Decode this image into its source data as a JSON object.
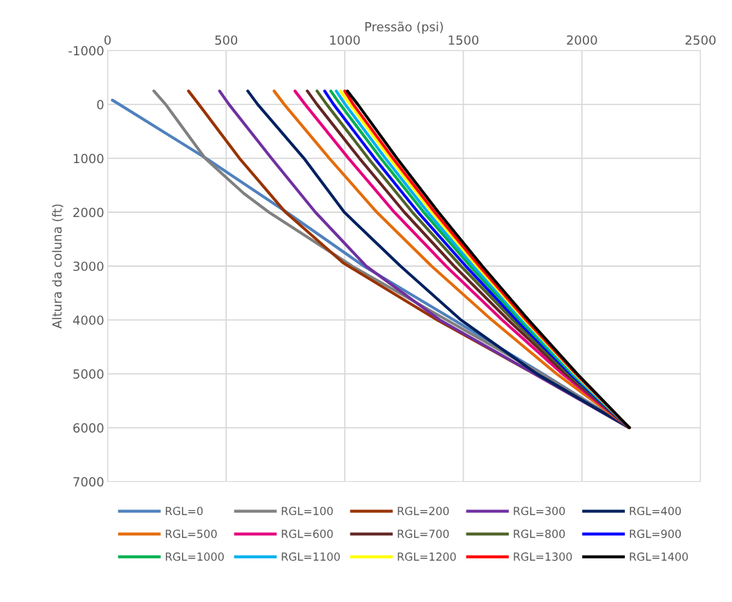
{
  "chart_data": {
    "type": "line",
    "xlabel": "Pressão (psi)",
    "ylabel": "Altura da coluna (ft)",
    "xlim": [
      0,
      2500
    ],
    "xticks": [
      0,
      500,
      1000,
      1500,
      2000,
      2500
    ],
    "ylim": [
      7000,
      -1000
    ],
    "yticks": [
      -1000,
      0,
      1000,
      2000,
      3000,
      4000,
      5000,
      6000,
      7000
    ],
    "grid": true,
    "legend": "bottom",
    "marker": "none",
    "line_style": "solid",
    "series": [
      {
        "name": "RGL=0",
        "color": "#4f81bd",
        "x": [
          20,
          50,
          415,
          755,
          1080,
          1460,
          1835,
          2200
        ],
        "values": [
          -80,
          0,
          1000,
          2000,
          3000,
          4000,
          5000,
          6000
        ]
      },
      {
        "name": "RGL=100",
        "color": "#808080",
        "x": [
          195,
          245,
          411,
          574,
          680,
          1031,
          1430,
          1830,
          2200
        ],
        "values": [
          -250,
          0,
          1000,
          1650,
          2000,
          3000,
          4000,
          5000,
          6000
        ]
      },
      {
        "name": "RGL=200",
        "color": "#993300",
        "x": [
          341,
          385,
          556,
          750,
          993,
          1390,
          1800,
          2200
        ],
        "values": [
          -250,
          0,
          1000,
          2000,
          2940,
          4000,
          5000,
          6000
        ]
      },
      {
        "name": "RGL=300",
        "color": "#7030a0",
        "x": [
          472,
          512,
          691,
          876,
          1090,
          1401,
          1800,
          2200
        ],
        "values": [
          -250,
          0,
          1000,
          2000,
          3000,
          4000,
          5000,
          6000
        ]
      },
      {
        "name": "RGL=400",
        "color": "#002060",
        "x": [
          591,
          633,
          828,
          998,
          1235,
          1490,
          1810,
          2200
        ],
        "values": [
          -250,
          0,
          1000,
          2000,
          3000,
          4000,
          5000,
          6000
        ]
      },
      {
        "name": "RGL=500",
        "color": "#e46c0a",
        "x": [
          702,
          745,
          935,
          1135,
          1366,
          1620,
          1893,
          2200
        ],
        "values": [
          -250,
          0,
          1000,
          2000,
          3000,
          4000,
          5000,
          6000
        ]
      },
      {
        "name": "RGL=600",
        "color": "#e6007e",
        "x": [
          790,
          833,
          1016,
          1209,
          1427,
          1664,
          1918,
          2200
        ],
        "values": [
          -250,
          0,
          1000,
          2000,
          3000,
          4000,
          5000,
          6000
        ]
      },
      {
        "name": "RGL=700",
        "color": "#632523",
        "x": [
          842,
          883,
          1062,
          1251,
          1461,
          1689,
          1932,
          2200
        ],
        "values": [
          -250,
          0,
          1000,
          2000,
          3000,
          4000,
          5000,
          6000
        ]
      },
      {
        "name": "RGL=800",
        "color": "#4f6228",
        "x": [
          883,
          924,
          1099,
          1285,
          1490,
          1709,
          1943,
          2200
        ],
        "values": [
          -250,
          0,
          1000,
          2000,
          3000,
          4000,
          5000,
          6000
        ]
      },
      {
        "name": "RGL=900",
        "color": "#0000ff",
        "x": [
          915,
          953,
          1126,
          1309,
          1510,
          1724,
          1951,
          2200
        ],
        "values": [
          -250,
          0,
          1000,
          2000,
          3000,
          4000,
          5000,
          6000
        ]
      },
      {
        "name": "RGL=1000",
        "color": "#00b050",
        "x": [
          941,
          981,
          1152,
          1333,
          1529,
          1738,
          1959,
          2200
        ],
        "values": [
          -250,
          0,
          1000,
          2000,
          3000,
          4000,
          5000,
          6000
        ]
      },
      {
        "name": "RGL=1100",
        "color": "#00b0f0",
        "x": [
          964,
          1002,
          1171,
          1350,
          1543,
          1748,
          1965,
          2200
        ],
        "values": [
          -250,
          0,
          1000,
          2000,
          3000,
          4000,
          5000,
          6000
        ]
      },
      {
        "name": "RGL=1200",
        "color": "#ffff00",
        "x": [
          982,
          1022,
          1190,
          1367,
          1557,
          1758,
          1971,
          2200
        ],
        "values": [
          -250,
          0,
          1000,
          2000,
          3000,
          4000,
          5000,
          6000
        ]
      },
      {
        "name": "RGL=1300",
        "color": "#ff0000",
        "x": [
          1000,
          1036,
          1203,
          1379,
          1567,
          1765,
          1975,
          2200
        ],
        "values": [
          -250,
          0,
          1000,
          2000,
          3000,
          4000,
          5000,
          6000
        ]
      },
      {
        "name": "RGL=1400",
        "color": "#000000",
        "x": [
          1011,
          1055,
          1220,
          1395,
          1580,
          1775,
          1980,
          2200
        ],
        "values": [
          -250,
          0,
          1000,
          2000,
          3000,
          4000,
          5000,
          6000
        ]
      }
    ]
  }
}
